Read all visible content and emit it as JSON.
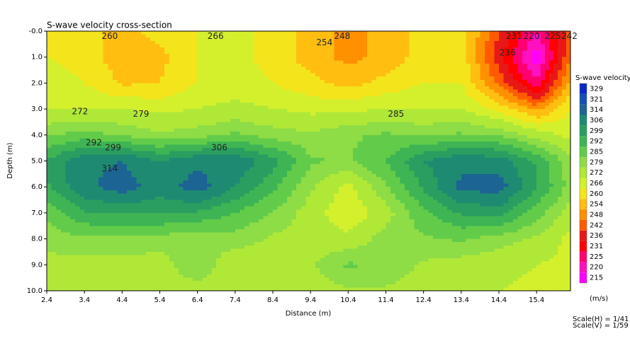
{
  "chart_data": {
    "type": "contour",
    "title": "S-wave velocity cross-section",
    "x_label": "Distance (m)",
    "y_label": "Depth (m)",
    "xlim": [
      2.4,
      16.3
    ],
    "ylim": [
      0,
      10
    ],
    "invert_y": true,
    "xticks": [
      2.4,
      3.4,
      4.4,
      5.4,
      6.4,
      7.4,
      8.4,
      9.4,
      10.4,
      11.4,
      12.4,
      13.4,
      14.4,
      15.4
    ],
    "yticks": [
      {
        "value": 0,
        "label": "-0.0"
      },
      {
        "value": 1,
        "label": "1.0"
      },
      {
        "value": 2,
        "label": "2.0"
      },
      {
        "value": 3,
        "label": "3.0"
      },
      {
        "value": 4,
        "label": "4.0"
      },
      {
        "value": 5,
        "label": "5.0"
      },
      {
        "value": 6,
        "label": "6.0"
      },
      {
        "value": 7,
        "label": "7.0"
      },
      {
        "value": 8,
        "label": "8.0"
      },
      {
        "value": 9,
        "label": "9.0"
      },
      {
        "value": 10,
        "label": "10.0"
      }
    ],
    "x": [
      2.4,
      3.4,
      4.4,
      5.4,
      6.4,
      7.4,
      8.4,
      9.4,
      10.4,
      11.4,
      12.4,
      13.4,
      14.4,
      15.4,
      16.3
    ],
    "y": [
      0,
      1,
      2,
      3,
      4,
      5,
      6,
      7,
      8,
      9,
      10
    ],
    "z": [
      [
        264,
        262,
        258,
        262,
        266,
        268,
        264,
        258,
        252,
        256,
        262,
        264,
        242,
        225,
        244
      ],
      [
        266,
        264,
        256,
        258,
        266,
        268,
        264,
        257,
        252,
        256,
        263,
        264,
        238,
        216,
        248
      ],
      [
        268,
        266,
        259,
        260,
        266,
        268,
        266,
        262,
        258,
        262,
        266,
        266,
        246,
        226,
        256
      ],
      [
        272,
        272,
        272,
        270,
        272,
        274,
        272,
        270,
        270,
        272,
        272,
        272,
        264,
        252,
        266
      ],
      [
        284,
        288,
        284,
        280,
        282,
        286,
        282,
        280,
        284,
        286,
        284,
        286,
        284,
        276,
        270
      ],
      [
        300,
        312,
        314,
        306,
        312,
        312,
        302,
        286,
        284,
        292,
        306,
        312,
        310,
        298,
        280
      ],
      [
        298,
        312,
        318,
        310,
        318,
        306,
        294,
        280,
        270,
        284,
        300,
        316,
        318,
        300,
        282
      ],
      [
        288,
        298,
        300,
        300,
        298,
        292,
        284,
        276,
        266,
        276,
        290,
        300,
        302,
        288,
        276
      ],
      [
        280,
        284,
        284,
        282,
        280,
        282,
        278,
        276,
        274,
        282,
        284,
        286,
        282,
        278,
        270
      ],
      [
        278,
        276,
        276,
        276,
        284,
        274,
        276,
        278,
        286,
        284,
        278,
        276,
        274,
        272,
        270
      ],
      [
        274,
        274,
        274,
        276,
        276,
        274,
        274,
        276,
        278,
        278,
        276,
        274,
        272,
        270,
        270
      ]
    ],
    "contour_labels": [
      {
        "value": 260,
        "x": 4.07,
        "y": 0.2
      },
      {
        "value": 266,
        "x": 6.88,
        "y": 0.2
      },
      {
        "value": 254,
        "x": 9.77,
        "y": 0.45
      },
      {
        "value": 248,
        "x": 10.24,
        "y": 0.2
      },
      {
        "value": 231,
        "x": 14.8,
        "y": 0.2
      },
      {
        "value": 220,
        "x": 15.27,
        "y": 0.2
      },
      {
        "value": 225,
        "x": 15.83,
        "y": 0.2
      },
      {
        "value": 242,
        "x": 16.27,
        "y": 0.2
      },
      {
        "value": 236,
        "x": 14.63,
        "y": 0.85
      },
      {
        "value": 272,
        "x": 3.28,
        "y": 3.1
      },
      {
        "value": 279,
        "x": 4.9,
        "y": 3.2
      },
      {
        "value": 285,
        "x": 11.67,
        "y": 3.2
      },
      {
        "value": 292,
        "x": 3.65,
        "y": 4.3
      },
      {
        "value": 299,
        "x": 4.16,
        "y": 4.5
      },
      {
        "value": 306,
        "x": 6.98,
        "y": 4.5
      },
      {
        "value": 314,
        "x": 4.07,
        "y": 5.3
      }
    ],
    "legend_title": "S-wave velocity",
    "legend_unit": "(m/s)",
    "levels": [
      215,
      220,
      225,
      231,
      236,
      242,
      248,
      254,
      260,
      266,
      272,
      279,
      285,
      292,
      299,
      306,
      314,
      321,
      329
    ],
    "colors": [
      "#ff00ff",
      "#ff10c0",
      "#ff0070",
      "#ff0000",
      "#e81818",
      "#ff5a00",
      "#ff9000",
      "#ffbe10",
      "#f4e41c",
      "#d4f02c",
      "#b0e838",
      "#8edc46",
      "#62cc4a",
      "#3eb454",
      "#2a9e60",
      "#1f8a72",
      "#1c6494",
      "#1450b4",
      "#0a28c8"
    ],
    "scale_notes": [
      "Scale(H) = 1/41",
      "Scale(V) = 1/59"
    ]
  }
}
